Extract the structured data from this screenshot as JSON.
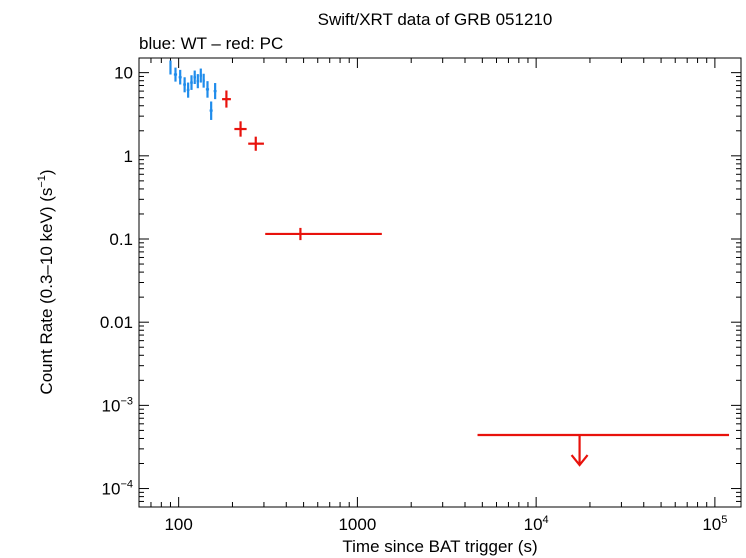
{
  "chart_data": {
    "type": "scatter",
    "title": "Swift/XRT data of GRB 051210",
    "subtitle": "blue: WT – red: PC",
    "xlabel": "Time since BAT trigger (s)",
    "ylabel": "Count Rate (0.3–10 keV) (s",
    "ylabel_sup": "−1",
    "ylabel_end": ")",
    "xscale": "log",
    "yscale": "log",
    "xlim": [
      60,
      140000
    ],
    "ylim": [
      6e-05,
      15
    ],
    "x_ticks": [
      {
        "value": 100,
        "label": "100",
        "sup": ""
      },
      {
        "value": 1000,
        "label": "1000",
        "sup": ""
      },
      {
        "value": 10000,
        "label": "10",
        "sup": "4"
      },
      {
        "value": 100000,
        "label": "10",
        "sup": "5"
      }
    ],
    "y_ticks": [
      {
        "value": 10,
        "label": "10",
        "sup": ""
      },
      {
        "value": 1,
        "label": "1",
        "sup": ""
      },
      {
        "value": 0.1,
        "label": "0.1",
        "sup": ""
      },
      {
        "value": 0.01,
        "label": "0.01",
        "sup": ""
      },
      {
        "value": 0.001,
        "label": "10",
        "sup": "−3"
      },
      {
        "value": 0.0001,
        "label": "10",
        "sup": "−4"
      }
    ],
    "series": [
      {
        "name": "WT",
        "color": "#1f8ceb",
        "points": [
          {
            "x": 90,
            "y": 11.5,
            "xlo": 89,
            "xhi": 91,
            "ylo": 9.5,
            "yhi": 14
          },
          {
            "x": 96,
            "y": 9.5,
            "xlo": 94,
            "xhi": 98,
            "ylo": 7.8,
            "yhi": 11.5
          },
          {
            "x": 102,
            "y": 8.8,
            "xlo": 100,
            "xhi": 104,
            "ylo": 7.2,
            "yhi": 10.8
          },
          {
            "x": 108,
            "y": 7.2,
            "xlo": 106,
            "xhi": 110,
            "ylo": 5.8,
            "yhi": 8.8
          },
          {
            "x": 113,
            "y": 6.2,
            "xlo": 111,
            "xhi": 115,
            "ylo": 5.0,
            "yhi": 7.6
          },
          {
            "x": 118,
            "y": 7.6,
            "xlo": 116,
            "xhi": 120,
            "ylo": 6.2,
            "yhi": 9.3
          },
          {
            "x": 123,
            "y": 8.8,
            "xlo": 121,
            "xhi": 125,
            "ylo": 7.3,
            "yhi": 10.6
          },
          {
            "x": 128,
            "y": 7.9,
            "xlo": 126,
            "xhi": 130,
            "ylo": 6.5,
            "yhi": 9.6
          },
          {
            "x": 133,
            "y": 9.2,
            "xlo": 131,
            "xhi": 135,
            "ylo": 7.6,
            "yhi": 11.2
          },
          {
            "x": 138,
            "y": 8.0,
            "xlo": 136,
            "xhi": 140,
            "ylo": 6.6,
            "yhi": 9.7
          },
          {
            "x": 145,
            "y": 6.3,
            "xlo": 142,
            "xhi": 148,
            "ylo": 5.0,
            "yhi": 7.9
          },
          {
            "x": 152,
            "y": 3.5,
            "xlo": 149,
            "xhi": 155,
            "ylo": 2.7,
            "yhi": 4.5
          },
          {
            "x": 160,
            "y": 6.0,
            "xlo": 157,
            "xhi": 163,
            "ylo": 4.8,
            "yhi": 7.5
          }
        ]
      },
      {
        "name": "PC",
        "color": "#e8120c",
        "points": [
          {
            "x": 185,
            "y": 4.8,
            "xlo": 175,
            "xhi": 196,
            "ylo": 3.8,
            "yhi": 6.1
          },
          {
            "x": 222,
            "y": 2.1,
            "xlo": 205,
            "xhi": 240,
            "ylo": 1.7,
            "yhi": 2.6
          },
          {
            "x": 270,
            "y": 1.4,
            "xlo": 245,
            "xhi": 300,
            "ylo": 1.15,
            "yhi": 1.7
          },
          {
            "x": 480,
            "y": 0.115,
            "xlo": 305,
            "xhi": 1370,
            "ylo": 0.097,
            "yhi": 0.136
          },
          {
            "x": 17500,
            "y": 0.00044,
            "xlo": 4700,
            "xhi": 120000,
            "upper_limit": true
          }
        ]
      }
    ]
  }
}
